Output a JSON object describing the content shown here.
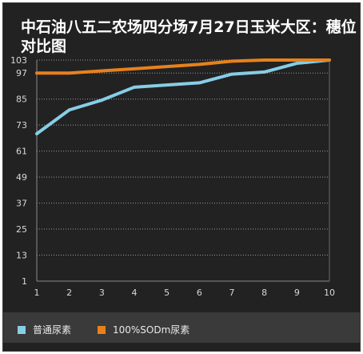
{
  "title": "中石油八五二农场四分场7月27日玉米大区：穗位对比图",
  "chart_data": {
    "type": "line",
    "title": "中石油八五二农场四分场7月27日玉米大区：穗位对比图",
    "xlabel": "",
    "ylabel": "",
    "x": [
      1,
      2,
      3,
      4,
      5,
      6,
      7,
      8,
      9,
      10
    ],
    "xticks": [
      "1",
      "2",
      "3",
      "4",
      "5",
      "6",
      "7",
      "8",
      "9",
      "10"
    ],
    "ylim": [
      1,
      103
    ],
    "yticks": [
      "1",
      "13",
      "25",
      "37",
      "49",
      "61",
      "73",
      "85",
      "97",
      "103"
    ],
    "grid": true,
    "legend_position": "bottom",
    "series": [
      {
        "name": "普通尿素",
        "color": "#87cde6",
        "values": [
          69,
          80,
          84.5,
          90.5,
          91.5,
          92.5,
          96.5,
          97.5,
          101.5,
          104
        ]
      },
      {
        "name": "100%SODm尿素",
        "color": "#e8811c",
        "values": [
          97,
          97,
          98,
          99,
          100,
          101,
          102.5,
          103,
          103.5,
          103.5
        ]
      }
    ]
  }
}
